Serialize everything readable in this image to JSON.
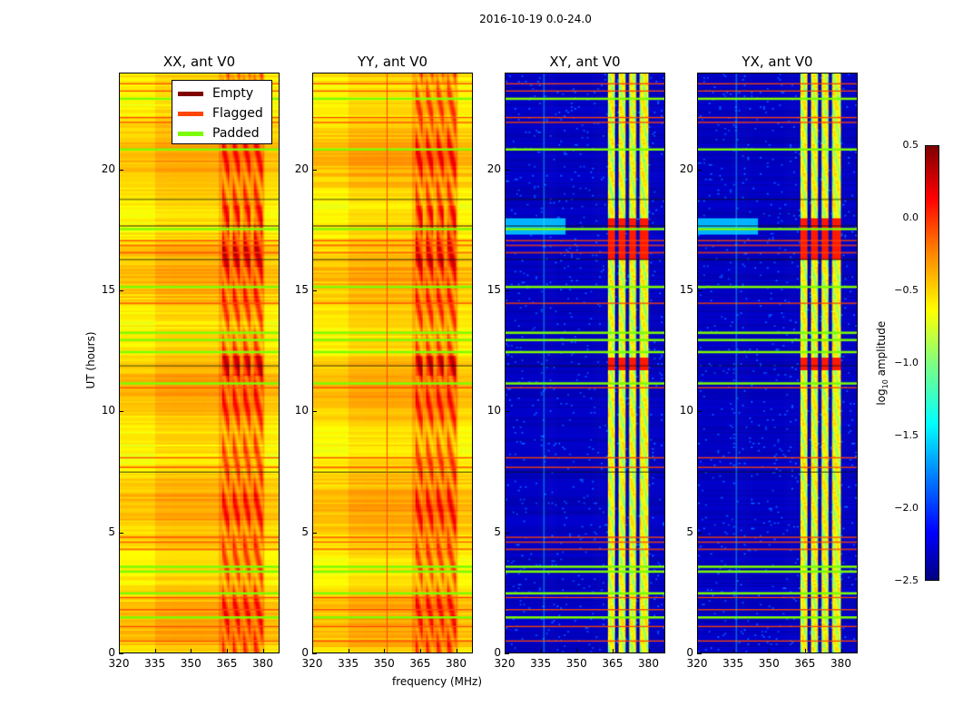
{
  "chart_data": {
    "type": "heatmap",
    "title": "2016-10-19 0.0-24.0",
    "xlabel": "frequency (MHz)",
    "ylabel": "UT (hours)",
    "xlim": [
      320,
      387
    ],
    "ylim": [
      0,
      24
    ],
    "xticks": [
      "320",
      "335",
      "350",
      "365",
      "380"
    ],
    "xtick_values": [
      320,
      335,
      350,
      365,
      380
    ],
    "yticks": [
      "0",
      "5",
      "10",
      "15",
      "20"
    ],
    "ytick_values": [
      0,
      5,
      10,
      15,
      20
    ],
    "panels": [
      {
        "title": "XX, ant V0",
        "kind": "auto"
      },
      {
        "title": "YY, ant V0",
        "kind": "auto"
      },
      {
        "title": "XY, ant V0",
        "kind": "cross"
      },
      {
        "title": "YX, ant V0",
        "kind": "cross"
      }
    ],
    "colorbar": {
      "label_main": "log",
      "label_sub": "10",
      "label_rest": " amplitude",
      "range": [
        -2.5,
        0.5
      ],
      "ticks": [
        "0.5",
        "0.0",
        "−0.5",
        "−1.0",
        "−1.5",
        "−2.0",
        "−2.5"
      ],
      "tick_values": [
        0.5,
        0,
        -0.5,
        -1,
        -1.5,
        -2,
        -2.5
      ],
      "colormap": "jet"
    },
    "legend": {
      "placement": "upper-right of first panel",
      "entries": [
        {
          "label": "Empty",
          "color": "#800000"
        },
        {
          "label": "Flagged",
          "color": "#ff4500"
        },
        {
          "label": "Padded",
          "color": "#7cfc00"
        }
      ]
    },
    "flagged_hours": [
      0.5,
      1.1,
      1.8,
      2.3,
      4.3,
      4.6,
      4.8,
      7.7,
      8.1,
      11.0,
      14.5,
      16.6,
      16.9,
      17.1,
      22.0,
      22.2,
      23.3,
      23.6
    ],
    "padded_hours": [
      1.5,
      2.5,
      3.4,
      3.6,
      12.5,
      13.0,
      13.3,
      15.2,
      11.2,
      20.9,
      23.0,
      17.6
    ],
    "empty_hours": [
      11.9,
      16.3,
      17.7,
      18.8,
      7.5
    ]
  }
}
